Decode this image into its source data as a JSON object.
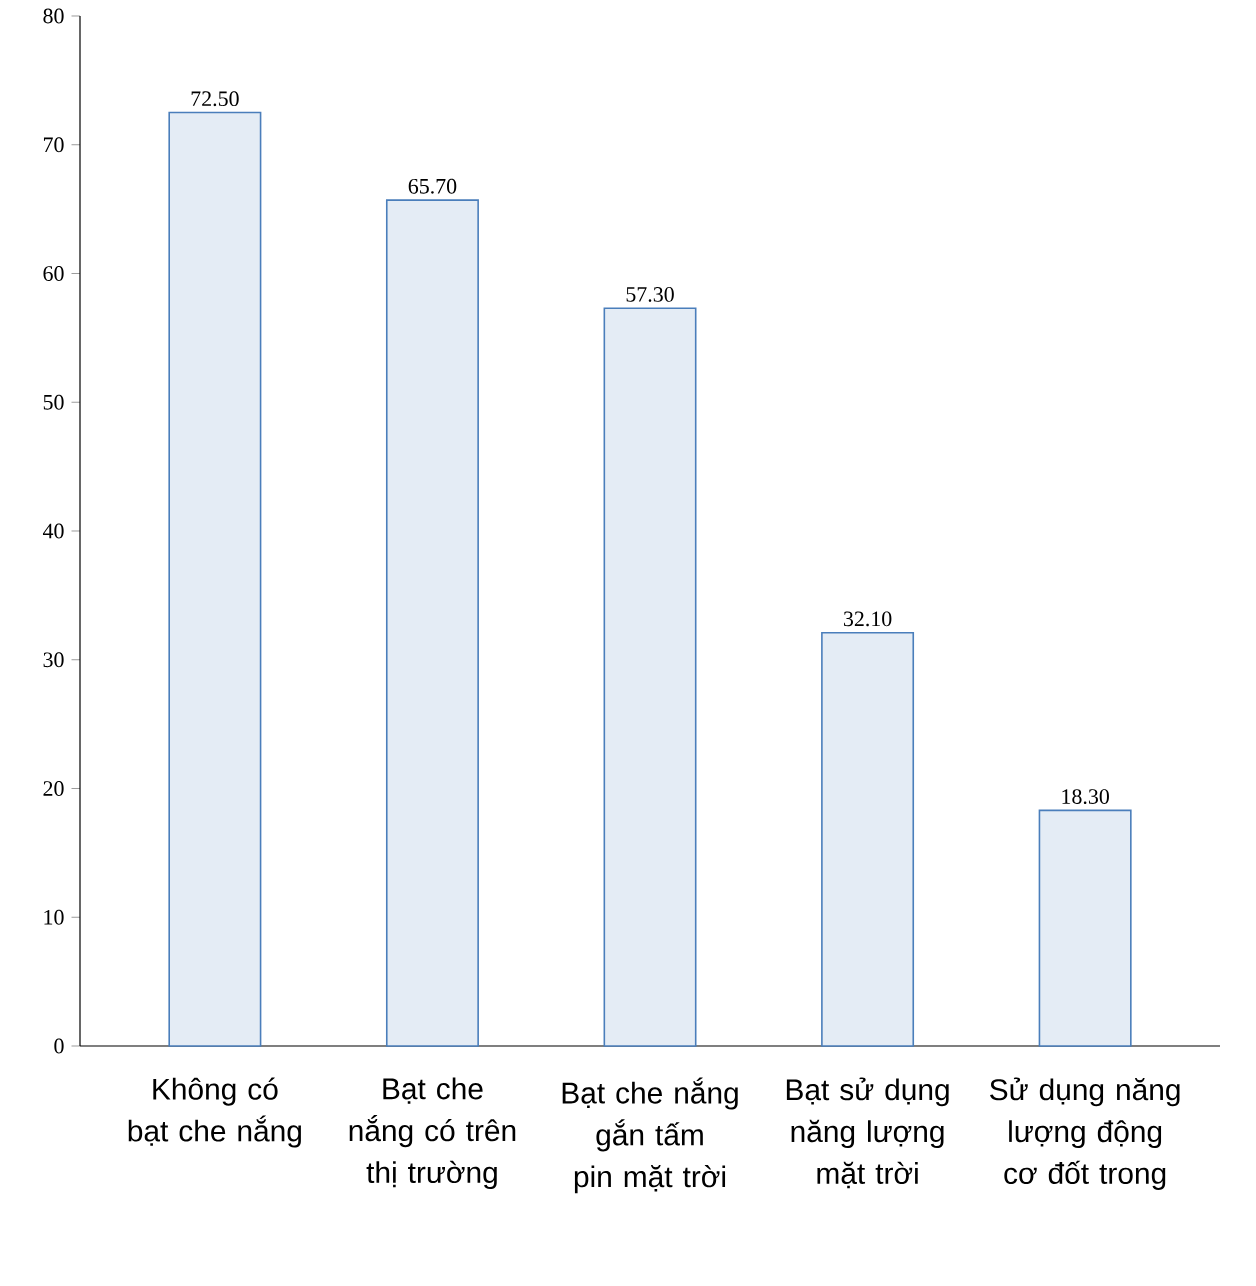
{
  "chart_data": {
    "type": "bar",
    "categories": [
      "Không có bạt che nắng",
      "Bạt che nắng có trên thị trường",
      "Bạt che nắng gắn tấm pin mặt trời",
      "Bạt sử dụng năng lượng mặt trời",
      "Sử dụng năng lượng động cơ đốt trong"
    ],
    "values": [
      72.5,
      65.7,
      57.3,
      32.1,
      18.3
    ],
    "value_labels": [
      "72.50",
      "65.70",
      "57.30",
      "32.10",
      "18.30"
    ],
    "color": "#4a7ebb",
    "ylim": [
      0,
      80
    ],
    "yticks": [
      0,
      10,
      20,
      30,
      40,
      50,
      60,
      70,
      80
    ]
  }
}
